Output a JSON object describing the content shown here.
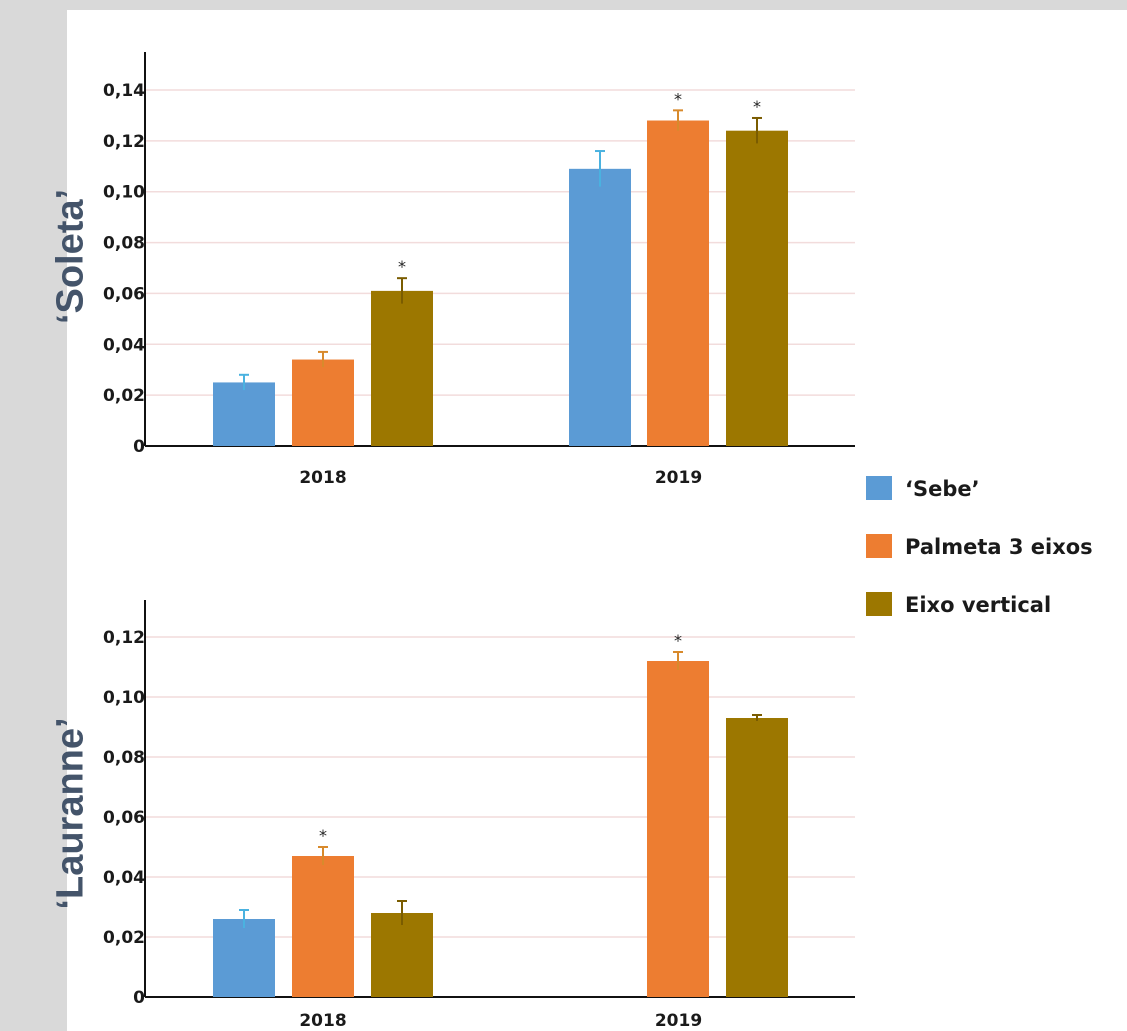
{
  "row_labels": [
    "‘Soleta’",
    "‘Lauranne’"
  ],
  "colors": {
    "sebe": "#5b9bd5",
    "palmeta": "#ed7d31",
    "eixo": "#9c7700",
    "sebe_err": "#4ab2e0",
    "palmeta_err": "#d88a2c",
    "eixo_err": "#7a5c00",
    "grid": "#f2dcdc",
    "axis": "#111111"
  },
  "legend": [
    {
      "label": "‘Sebe’",
      "color_key": "sebe"
    },
    {
      "label": "Palmeta 3 eixos",
      "color_key": "palmeta"
    },
    {
      "label": "Eixo vertical",
      "color_key": "eixo"
    }
  ],
  "chart_data": [
    {
      "type": "bar",
      "title": "",
      "row_label": "‘Soleta’",
      "categories": [
        "2018",
        "2019"
      ],
      "ylim": [
        0,
        0.14
      ],
      "yticks": [
        "0",
        "0,02",
        "0,04",
        "0,06",
        "0,08",
        "0,10",
        "0,12",
        "0,14"
      ],
      "ytick_values": [
        0,
        0.02,
        0.04,
        0.06,
        0.08,
        0.1,
        0.12,
        0.14
      ],
      "grid": true,
      "legend_placement": "right",
      "series": [
        {
          "name": "‘Sebe’",
          "values": [
            0.025,
            0.109
          ],
          "errors": [
            0.003,
            0.007
          ],
          "significant": [
            false,
            false
          ]
        },
        {
          "name": "Palmeta 3 eixos",
          "values": [
            0.034,
            0.128
          ],
          "errors": [
            0.003,
            0.004
          ],
          "significant": [
            false,
            true
          ]
        },
        {
          "name": "Eixo vertical",
          "values": [
            0.061,
            0.124
          ],
          "errors": [
            0.005,
            0.005
          ],
          "significant": [
            true,
            true
          ]
        }
      ]
    },
    {
      "type": "bar",
      "title": "",
      "row_label": "‘Lauranne’",
      "categories": [
        "2018",
        "2019"
      ],
      "ylim": [
        0,
        0.13
      ],
      "yticks": [
        "0",
        "0,02",
        "0,04",
        "0,06",
        "0,08",
        "0,10",
        "0,12"
      ],
      "ytick_values": [
        0,
        0.02,
        0.04,
        0.06,
        0.08,
        0.1,
        0.12
      ],
      "grid": true,
      "legend_placement": "right",
      "series": [
        {
          "name": "‘Sebe’",
          "values": [
            0.026,
            null
          ],
          "errors": [
            0.003,
            null
          ],
          "significant": [
            false,
            false
          ]
        },
        {
          "name": "Palmeta 3 eixos",
          "values": [
            0.047,
            0.112
          ],
          "errors": [
            0.003,
            0.003
          ],
          "significant": [
            true,
            true
          ]
        },
        {
          "name": "Eixo vertical",
          "values": [
            0.028,
            0.093
          ],
          "errors": [
            0.004,
            0.001
          ],
          "significant": [
            false,
            false
          ]
        }
      ]
    }
  ]
}
